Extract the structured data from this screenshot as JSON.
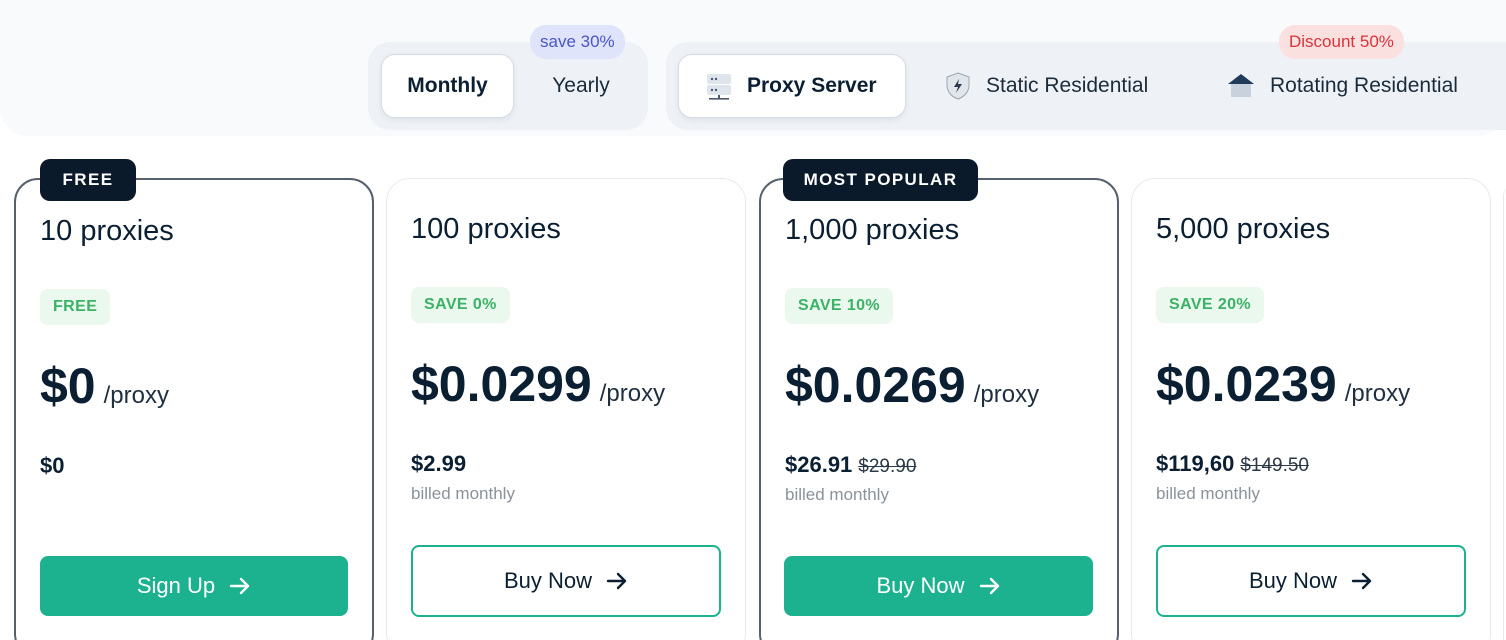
{
  "billing": {
    "monthly_label": "Monthly",
    "yearly_label": "Yearly",
    "save_badge": "save 30%"
  },
  "products": {
    "proxy_server": "Proxy Server",
    "static_residential": "Static Residential",
    "rotating_residential": "Rotating Residential",
    "discount_badge": "Discount 50%"
  },
  "plans": [
    {
      "ribbon": "FREE",
      "title": "10 proxies",
      "save": "FREE",
      "price": "$0",
      "unit": "/proxy",
      "total": "$0",
      "was": "",
      "billed": "",
      "cta": "Sign Up"
    },
    {
      "ribbon": "",
      "title": "100 proxies",
      "save": "SAVE 0%",
      "price": "$0.0299",
      "unit": "/proxy",
      "total": "$2.99",
      "was": "",
      "billed": "billed monthly",
      "cta": "Buy Now"
    },
    {
      "ribbon": "MOST POPULAR",
      "title": "1,000 proxies",
      "save": "SAVE 10%",
      "price": "$0.0269",
      "unit": "/proxy",
      "total": "$26.91",
      "was": "$29.90",
      "billed": "billed monthly",
      "cta": "Buy Now"
    },
    {
      "ribbon": "",
      "title": "5,000 proxies",
      "save": "SAVE 20%",
      "price": "$0.0239",
      "unit": "/proxy",
      "total": "$119,60",
      "was": "$149.50",
      "billed": "billed monthly",
      "cta": "Buy Now"
    }
  ],
  "colors": {
    "accent": "#1cb28f",
    "dark": "#0b1a2b",
    "save_green": "#3bb265",
    "save_badge": "#4a56c7",
    "discount_red": "#d8343a"
  },
  "icons": {
    "proxy_server": "server-icon",
    "static_residential": "shield-bolt-icon",
    "rotating_residential": "house-icon",
    "cta": "arrow-right-icon"
  }
}
